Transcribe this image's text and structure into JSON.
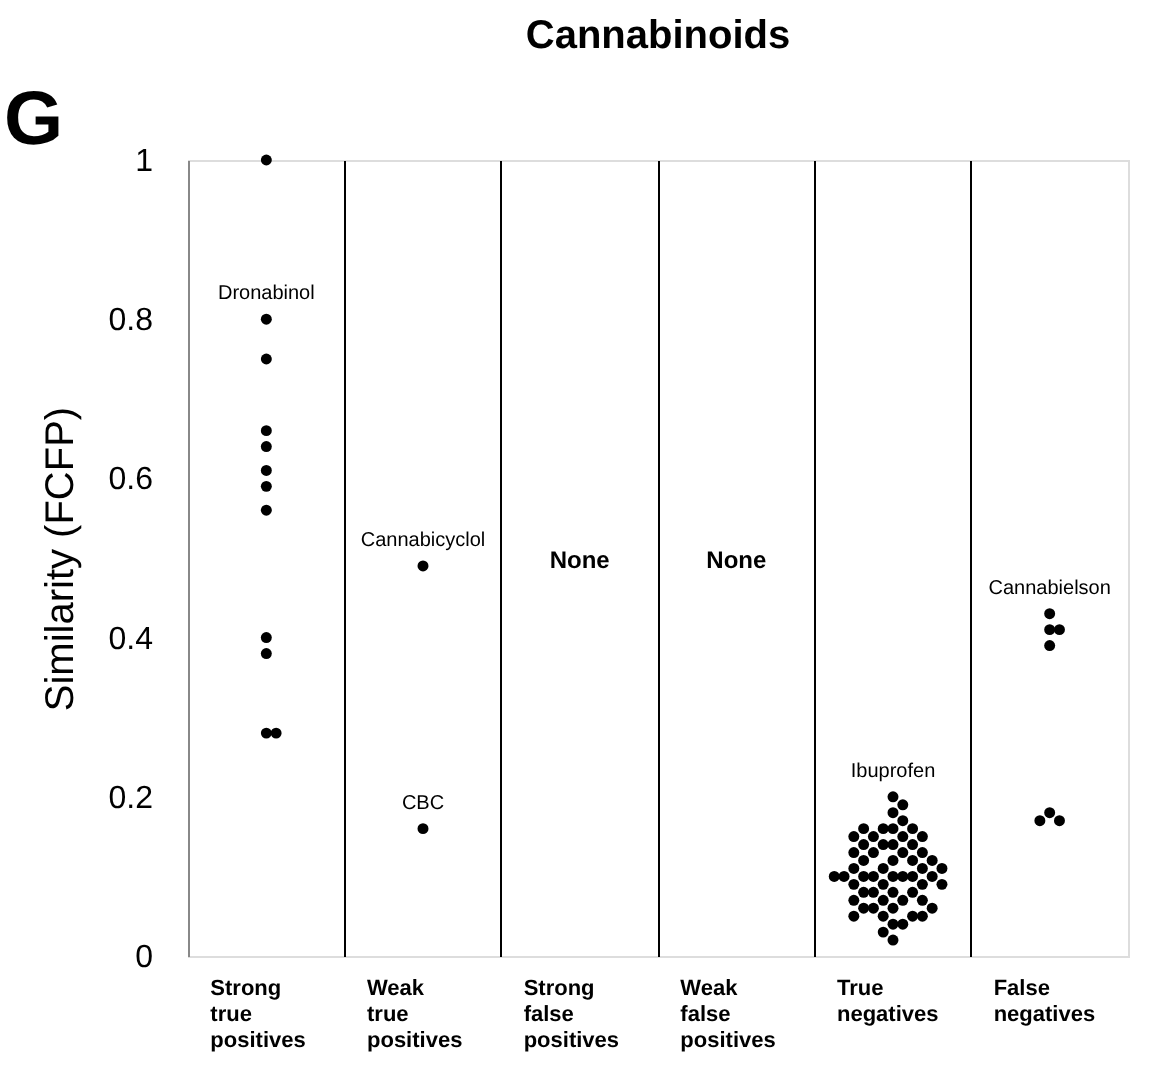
{
  "chart_data": {
    "type": "scatter",
    "title": "Cannabinoids",
    "ylabel": "Similarity (FCFP)",
    "categories": [
      "Strong true positives",
      "Weak true positives",
      "Strong false positives",
      "Weak false positives",
      "True negatives",
      "False negatives"
    ],
    "ylim": [
      0,
      1
    ],
    "yticks": [
      0,
      0.2,
      0.4,
      0.6,
      0.8,
      1
    ],
    "grid": "x",
    "marker": "circle",
    "series": [
      {
        "color": "#000000",
        "x": [
          "Strong true positives",
          "Strong true positives",
          "Strong true positives",
          "Strong true positives",
          "Strong true positives",
          "Strong true positives",
          "Strong true positives",
          "Strong true positives",
          "Strong true positives",
          "Strong true positives",
          "Strong true positives",
          "Strong true positives",
          "Weak true positives",
          "Weak true positives",
          "False negatives",
          "False negatives",
          "False negatives",
          "False negatives",
          "False negatives",
          "False negatives",
          "False negatives"
        ],
        "values": [
          1.0,
          0.8,
          0.75,
          0.66,
          0.64,
          0.61,
          0.59,
          0.56,
          0.4,
          0.38,
          0.28,
          0.28,
          0.49,
          0.16,
          0.43,
          0.41,
          0.41,
          0.39,
          0.18,
          0.17,
          0.17
        ]
      },
      {
        "color": "#000000",
        "x": [
          "True negatives",
          "True negatives",
          "True negatives",
          "True negatives",
          "True negatives",
          "True negatives",
          "True negatives",
          "True negatives",
          "True negatives",
          "True negatives",
          "True negatives",
          "True negatives",
          "True negatives",
          "True negatives",
          "True negatives",
          "True negatives",
          "True negatives",
          "True negatives",
          "True negatives",
          "True negatives",
          "True negatives",
          "True negatives",
          "True negatives",
          "True negatives",
          "True negatives",
          "True negatives",
          "True negatives",
          "True negatives",
          "True negatives",
          "True negatives",
          "True negatives",
          "True negatives",
          "True negatives",
          "True negatives",
          "True negatives",
          "True negatives",
          "True negatives",
          "True negatives",
          "True negatives",
          "True negatives",
          "True negatives",
          "True negatives",
          "True negatives",
          "True negatives",
          "True negatives",
          "True negatives",
          "True negatives",
          "True negatives",
          "True negatives",
          "True negatives",
          "True negatives",
          "True negatives",
          "True negatives",
          "True negatives",
          "True negatives",
          "True negatives",
          "True negatives",
          "True negatives",
          "True negatives",
          "True negatives"
        ],
        "values": [
          0.2,
          0.19,
          0.18,
          0.17,
          0.04,
          0.04,
          0.03,
          0.02,
          0.1,
          0.1,
          0.16,
          0.15,
          0.14,
          0.13,
          0.12,
          0.11,
          0.1,
          0.09,
          0.08,
          0.07,
          0.06,
          0.05,
          0.16,
          0.15,
          0.14,
          0.13,
          0.12,
          0.11,
          0.1,
          0.09,
          0.08,
          0.07,
          0.06,
          0.05,
          0.16,
          0.15,
          0.14,
          0.13,
          0.12,
          0.11,
          0.1,
          0.09,
          0.08,
          0.07,
          0.06,
          0.05,
          0.16,
          0.15,
          0.14,
          0.13,
          0.12,
          0.11,
          0.1,
          0.09,
          0.08,
          0.07,
          0.06,
          0.05,
          0.1,
          0.1
        ]
      }
    ],
    "annotations": [
      "G",
      "None",
      "None",
      {
        "text": "Dronabinol",
        "x": "Strong true positives",
        "y": 0.8
      },
      {
        "text": "Cannabicyclol",
        "x": "Weak true positives",
        "y": 0.49
      },
      {
        "text": "CBC",
        "x": "Weak true positives",
        "y": 0.16
      },
      {
        "text": "Ibuprofen",
        "x": "True negatives",
        "y": 0.2
      },
      {
        "text": "Cannabielson",
        "x": "False negatives",
        "y": 0.43
      }
    ]
  }
}
